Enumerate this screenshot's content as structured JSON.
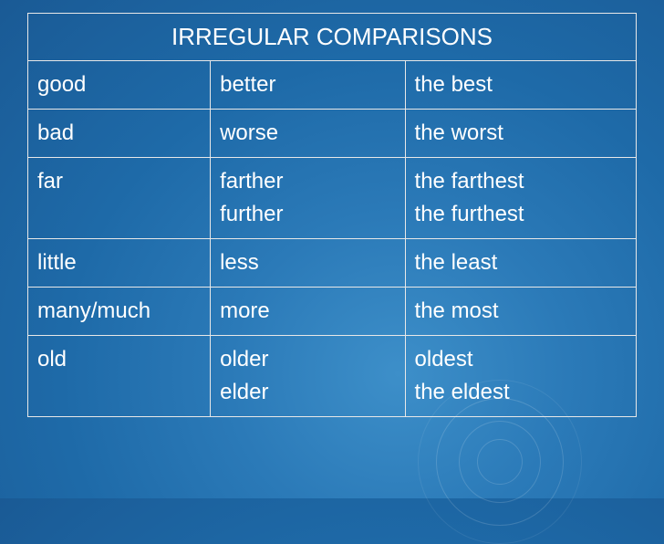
{
  "title": "IRREGULAR COMPARISONS",
  "rows": [
    {
      "base": "good",
      "comp": "better",
      "sup": "the best"
    },
    {
      "base": "bad",
      "comp": "worse",
      "sup": "the worst"
    },
    {
      "base": "far",
      "comp": "farther\nfurther",
      "sup": "the farthest\nthe furthest"
    },
    {
      "base": "little",
      "comp": "less",
      "sup": "the least"
    },
    {
      "base": "many/much",
      "comp": "more",
      "sup": "the most"
    },
    {
      "base": "old",
      "comp": "older\nelder",
      "sup": "oldest\nthe eldest"
    }
  ],
  "style": {
    "background_gradient": [
      "#3d8fc9",
      "#1a5a95"
    ],
    "border_color": "#e8e8e8",
    "text_color": "#ffffff",
    "title_fontsize": 26,
    "cell_fontsize": 24,
    "font_family": "Arial",
    "col_widths_pct": [
      30,
      32,
      38
    ]
  }
}
